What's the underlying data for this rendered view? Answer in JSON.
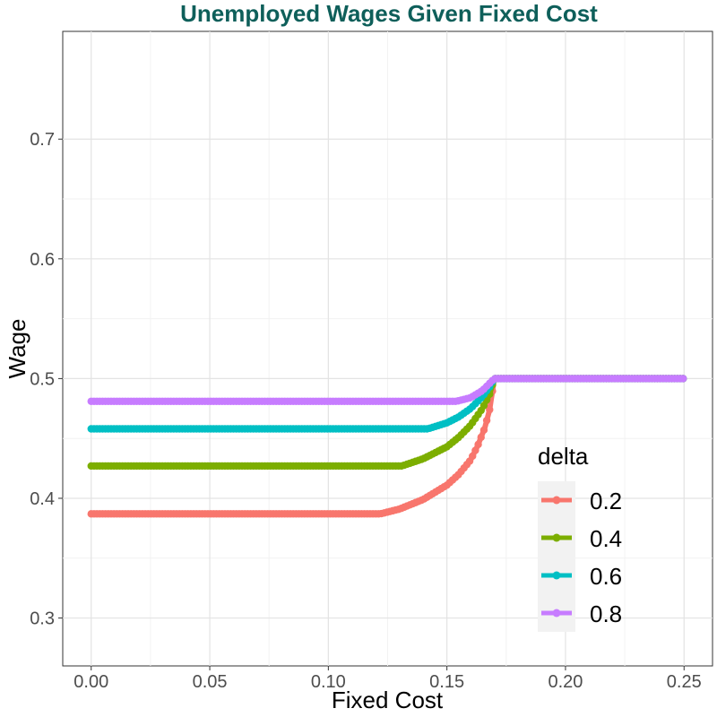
{
  "chart_data": {
    "type": "line",
    "title": "Unemployed Wages Given Fixed Cost",
    "xlabel": "Fixed Cost",
    "ylabel": "Wage",
    "xlim": [
      -0.012,
      0.262
    ],
    "ylim": [
      0.26,
      0.79
    ],
    "x_ticks": [
      0.0,
      0.05,
      0.1,
      0.15,
      0.2,
      0.25
    ],
    "x_tick_labels": [
      "0.00",
      "0.05",
      "0.10",
      "0.15",
      "0.20",
      "0.25"
    ],
    "y_ticks": [
      0.3,
      0.4,
      0.5,
      0.6,
      0.7
    ],
    "y_tick_labels": [
      "0.3",
      "0.4",
      "0.5",
      "0.6",
      "0.7"
    ],
    "grid": true,
    "legend": {
      "title": "delta",
      "placement": "right-inside"
    },
    "series": [
      {
        "name": "0.2",
        "color": "#F8766D",
        "x": [
          0.0,
          0.05,
          0.1,
          0.122,
          0.13,
          0.14,
          0.15,
          0.155,
          0.16,
          0.163,
          0.166,
          0.168,
          0.17,
          0.2,
          0.25
        ],
        "values": [
          0.387,
          0.387,
          0.387,
          0.387,
          0.391,
          0.399,
          0.411,
          0.42,
          0.432,
          0.444,
          0.459,
          0.474,
          0.5,
          0.5,
          0.5
        ]
      },
      {
        "name": "0.4",
        "color": "#7CAE00",
        "x": [
          0.0,
          0.05,
          0.1,
          0.131,
          0.14,
          0.15,
          0.155,
          0.16,
          0.165,
          0.168,
          0.17,
          0.2,
          0.25
        ],
        "values": [
          0.427,
          0.427,
          0.427,
          0.427,
          0.433,
          0.443,
          0.451,
          0.461,
          0.475,
          0.487,
          0.5,
          0.5,
          0.5
        ]
      },
      {
        "name": "0.6",
        "color": "#00BFC4",
        "x": [
          0.0,
          0.05,
          0.1,
          0.142,
          0.15,
          0.155,
          0.16,
          0.165,
          0.168,
          0.17,
          0.2,
          0.25
        ],
        "values": [
          0.458,
          0.458,
          0.458,
          0.458,
          0.463,
          0.468,
          0.475,
          0.485,
          0.493,
          0.5,
          0.5,
          0.5
        ]
      },
      {
        "name": "0.8",
        "color": "#C77CFF",
        "x": [
          0.0,
          0.05,
          0.1,
          0.154,
          0.16,
          0.165,
          0.17,
          0.2,
          0.25
        ],
        "values": [
          0.481,
          0.481,
          0.481,
          0.481,
          0.484,
          0.49,
          0.5,
          0.5,
          0.5
        ]
      }
    ]
  }
}
